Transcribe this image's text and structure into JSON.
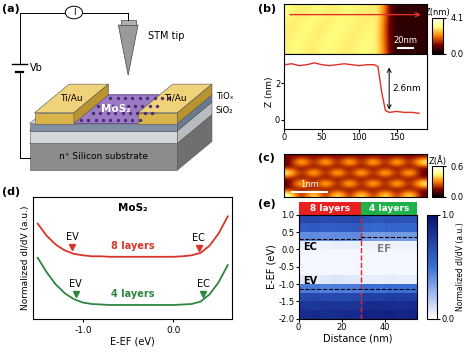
{
  "chart_data": [
    {
      "type": "diagram",
      "panel": "(a)",
      "labels": {
        "tip": "STM tip",
        "electrode_left": "Ti/Au",
        "electrode_right": "Ti/Au",
        "channel": "MoS₂",
        "oxide_top": "TiOₓ",
        "oxide": "SiO₂",
        "substrate": "n⁺ Silicon substrate",
        "current": "I",
        "bias": "Vb"
      }
    },
    {
      "type": "image",
      "panel": "(b)",
      "colorbar_label": "Z(nm)",
      "clim": [
        0,
        4.1
      ],
      "cticks": [
        {
          "value": 0,
          "label": "0.0"
        },
        4.1
      ],
      "scale_bar": {
        "label": "20nm",
        "length": 20
      },
      "width_nm": 190,
      "cells": [
        [
          3.0,
          3.1,
          3.0,
          2.9,
          3.0,
          3.1,
          3.0,
          3.0,
          2.9,
          3.0,
          3.1,
          3.0,
          3.0,
          1.8,
          0.4,
          0.3,
          0.4,
          0.4,
          0.3
        ],
        [
          2.9,
          3.0,
          3.1,
          3.0,
          2.9,
          3.0,
          3.1,
          3.0,
          3.0,
          2.9,
          3.0,
          3.1,
          2.9,
          1.6,
          0.4,
          0.4,
          0.3,
          0.4,
          0.4
        ],
        [
          3.0,
          2.9,
          3.0,
          3.1,
          3.0,
          2.9,
          3.0,
          3.1,
          3.0,
          3.0,
          2.9,
          3.0,
          3.0,
          1.7,
          0.3,
          0.4,
          0.4,
          0.3,
          0.4
        ],
        [
          3.1,
          3.0,
          2.9,
          3.0,
          3.1,
          3.0,
          2.9,
          3.0,
          3.1,
          3.0,
          3.0,
          2.9,
          3.0,
          1.9,
          0.4,
          0.3,
          0.4,
          0.4,
          0.4
        ]
      ]
    },
    {
      "type": "line",
      "ylabel": "Z (nm)",
      "color": "#e0302a",
      "x": [
        0,
        10,
        20,
        30,
        40,
        50,
        60,
        70,
        80,
        90,
        100,
        110,
        120,
        125,
        130,
        135,
        140,
        150,
        160,
        170,
        180
      ],
      "values": [
        3.0,
        3.05,
        2.95,
        3.0,
        3.1,
        3.0,
        2.95,
        3.0,
        3.05,
        3.0,
        2.95,
        3.0,
        3.0,
        2.9,
        1.5,
        0.5,
        0.4,
        0.45,
        0.4,
        0.4,
        0.35
      ],
      "xlim": [
        0,
        190
      ],
      "xticks": [
        0,
        50,
        100,
        150
      ],
      "ylim": [
        -0.5,
        3.6
      ],
      "yticks": [
        0,
        2
      ],
      "annotations": [
        {
          "text": "2.6nm",
          "x": 140,
          "top": 3.0,
          "bottom": 0.4
        }
      ]
    },
    {
      "type": "image",
      "panel": "(c)",
      "colorbar_label": "Z(Å)",
      "clim": [
        0,
        0.6
      ],
      "cticks": [
        {
          "value": 0,
          "label": "0.0"
        },
        0.6
      ],
      "scale_bar": {
        "label": "1nm",
        "length": 1
      },
      "width_nm": 4.0,
      "cells": [
        [
          0.55,
          0.1,
          0.55,
          0.1,
          0.55,
          0.1,
          0.55,
          0.1,
          0.55,
          0.1,
          0.55,
          0.1
        ],
        [
          0.15,
          0.15,
          0.15,
          0.15,
          0.15,
          0.15,
          0.15,
          0.15,
          0.15,
          0.15,
          0.15,
          0.15
        ],
        [
          0.1,
          0.55,
          0.1,
          0.55,
          0.1,
          0.55,
          0.1,
          0.55,
          0.1,
          0.55,
          0.1,
          0.55
        ],
        [
          0.15,
          0.15,
          0.15,
          0.15,
          0.15,
          0.15,
          0.15,
          0.15,
          0.15,
          0.15,
          0.15,
          0.15
        ],
        [
          0.55,
          0.1,
          0.55,
          0.1,
          0.55,
          0.1,
          0.55,
          0.1,
          0.55,
          0.1,
          0.55,
          0.1
        ],
        [
          0.15,
          0.15,
          0.15,
          0.15,
          0.15,
          0.15,
          0.15,
          0.15,
          0.15,
          0.15,
          0.15,
          0.15
        ],
        [
          0.1,
          0.55,
          0.1,
          0.55,
          0.1,
          0.55,
          0.1,
          0.55,
          0.1,
          0.55,
          0.1,
          0.55
        ],
        [
          0.15,
          0.15,
          0.15,
          0.15,
          0.15,
          0.15,
          0.15,
          0.15,
          0.15,
          0.15,
          0.15,
          0.15
        ]
      ]
    },
    {
      "type": "line",
      "panel": "(d)",
      "title": "MoS₂",
      "xlabel": "E-EF (eV)",
      "ylabel": "Normalized dI/dV (a.u.)",
      "x": [
        -1.5,
        -1.4,
        -1.3,
        -1.2,
        -1.1,
        -1.0,
        -0.9,
        -0.8,
        -0.7,
        -0.6,
        -0.5,
        -0.4,
        -0.3,
        -0.2,
        -0.1,
        0.0,
        0.1,
        0.2,
        0.3,
        0.4,
        0.5,
        0.6
      ],
      "series": [
        {
          "name": "8 layers",
          "color": "#d8342c",
          "values": [
            2.55,
            2.3,
            2.12,
            2.0,
            1.93,
            1.9,
            1.88,
            1.88,
            1.87,
            1.87,
            1.87,
            1.87,
            1.87,
            1.87,
            1.87,
            1.87,
            1.88,
            1.9,
            1.95,
            2.1,
            2.35,
            2.7
          ]
        },
        {
          "name": "4 layers",
          "color": "#2e8540",
          "values": [
            1.85,
            1.55,
            1.3,
            1.12,
            1.0,
            0.93,
            0.9,
            0.89,
            0.88,
            0.88,
            0.88,
            0.88,
            0.88,
            0.88,
            0.88,
            0.88,
            0.89,
            0.9,
            0.95,
            1.1,
            1.35,
            1.7
          ]
        }
      ],
      "band_edges": [
        {
          "series": "8 layers",
          "label": "EV",
          "x": -1.12
        },
        {
          "series": "8 layers",
          "label": "EC",
          "x": 0.28
        },
        {
          "series": "4 layers",
          "label": "EV",
          "x": -1.08
        },
        {
          "series": "4 layers",
          "label": "EC",
          "x": 0.33
        }
      ],
      "xlim": [
        -1.55,
        0.65
      ],
      "xticks": [
        {
          "value": -1,
          "label": "-1.0"
        },
        {
          "value": 0,
          "label": "0.0"
        }
      ],
      "ylim": [
        0.6,
        3.1
      ],
      "tick_labels": "x"
    },
    {
      "type": "heatmap",
      "panel": "(e)",
      "xlabel": "Distance (nm)",
      "ylabel": "E-EF (eV)",
      "x_edges": [
        0,
        5,
        10,
        15,
        20,
        25,
        30,
        35,
        40,
        45,
        50,
        55
      ],
      "y_edges": [
        -2.0,
        -1.75,
        -1.5,
        -1.25,
        -1.0,
        -0.75,
        -0.5,
        -0.25,
        0.0,
        0.25,
        0.5,
        0.75,
        1.0
      ],
      "cells": [
        [
          0.85,
          0.86,
          0.84,
          0.85,
          0.86,
          0.85,
          0.9,
          0.9,
          0.91,
          0.89,
          0.9
        ],
        [
          0.8,
          0.79,
          0.81,
          0.8,
          0.8,
          0.81,
          0.85,
          0.86,
          0.85,
          0.84,
          0.85
        ],
        [
          0.7,
          0.71,
          0.69,
          0.7,
          0.7,
          0.71,
          0.75,
          0.74,
          0.76,
          0.75,
          0.75
        ],
        [
          0.45,
          0.46,
          0.44,
          0.45,
          0.45,
          0.46,
          0.5,
          0.49,
          0.51,
          0.5,
          0.5
        ],
        [
          0.08,
          0.07,
          0.08,
          0.09,
          0.08,
          0.08,
          0.06,
          0.06,
          0.07,
          0.06,
          0.06
        ],
        [
          0.03,
          0.03,
          0.03,
          0.03,
          0.03,
          0.03,
          0.03,
          0.03,
          0.03,
          0.03,
          0.03
        ],
        [
          0.03,
          0.03,
          0.03,
          0.03,
          0.03,
          0.03,
          0.03,
          0.03,
          0.03,
          0.03,
          0.03
        ],
        [
          0.03,
          0.03,
          0.03,
          0.03,
          0.03,
          0.03,
          0.03,
          0.03,
          0.03,
          0.03,
          0.03
        ],
        [
          0.06,
          0.06,
          0.05,
          0.06,
          0.06,
          0.06,
          0.05,
          0.05,
          0.05,
          0.05,
          0.05
        ],
        [
          0.4,
          0.41,
          0.39,
          0.4,
          0.4,
          0.41,
          0.35,
          0.34,
          0.36,
          0.35,
          0.35
        ],
        [
          0.6,
          0.61,
          0.59,
          0.6,
          0.6,
          0.61,
          0.55,
          0.54,
          0.56,
          0.55,
          0.55
        ],
        [
          0.7,
          0.71,
          0.69,
          0.7,
          0.7,
          0.71,
          0.65,
          0.64,
          0.66,
          0.65,
          0.65
        ]
      ],
      "xlim": [
        0,
        55
      ],
      "xticks": [
        0,
        20,
        40
      ],
      "ylim": [
        -2.0,
        1.0
      ],
      "yticks": [
        {
          "value": -2.0,
          "label": "-2.0"
        },
        {
          "value": -1.5,
          "label": "-1.5"
        },
        {
          "value": -1.0,
          "label": "-1.0"
        },
        {
          "value": -0.5,
          "label": "-0.5"
        },
        {
          "value": 0.0,
          "label": "0.0"
        },
        {
          "value": 0.5,
          "label": "0.5"
        },
        {
          "value": 1.0,
          "label": "1.0"
        }
      ],
      "colorbar_label": "Normalized dI/dV (a.u.)",
      "clim": [
        0,
        1
      ],
      "cticks": [
        {
          "value": 0,
          "label": "0.0"
        },
        {
          "value": 1,
          "label": "1.0"
        }
      ],
      "regions": [
        {
          "name": "8 layers",
          "from": 0,
          "to": 29,
          "color": "#e8201f"
        },
        {
          "name": "4 layers",
          "from": 29,
          "to": 55,
          "color": "#21b14b"
        }
      ],
      "boundary": 29,
      "band_edges": [
        {
          "label": "EC",
          "segments": [
            {
              "from": 0,
              "to": 29,
              "y": 0.3
            },
            {
              "from": 29,
              "to": 55,
              "y": 0.35
            }
          ]
        },
        {
          "label": "EV",
          "segments": [
            {
              "from": 0,
              "to": 55,
              "y": -1.15
            }
          ]
        }
      ],
      "fermi_level": {
        "label": "EF",
        "y": 0.0
      }
    }
  ]
}
